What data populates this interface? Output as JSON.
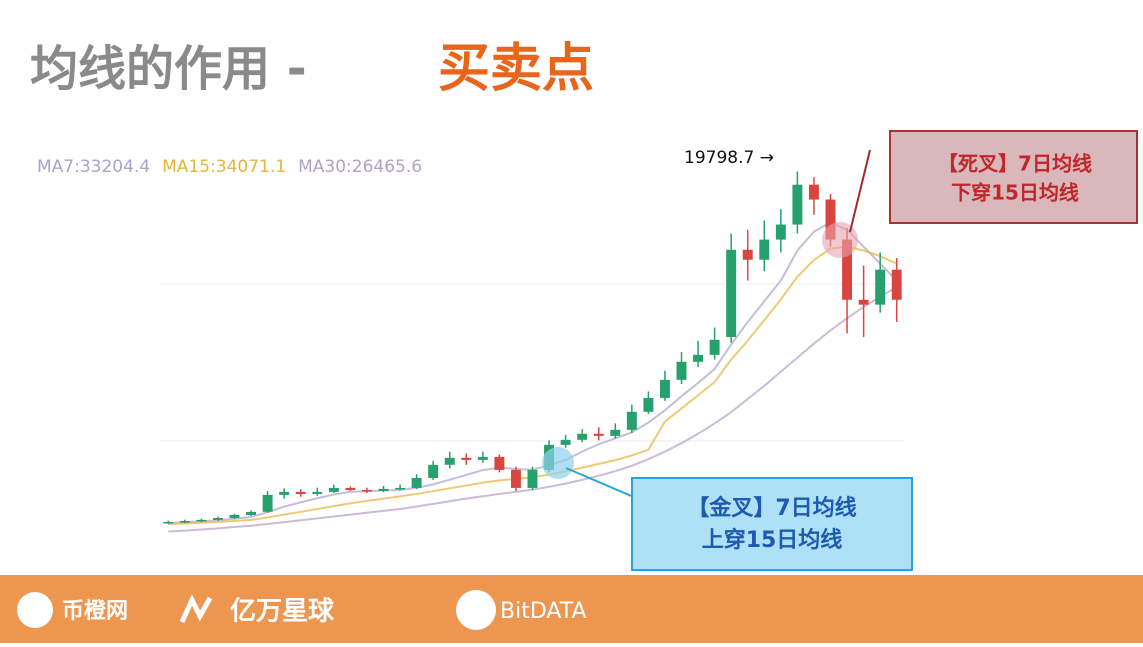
{
  "title": {
    "part1": "均线的作用 -",
    "part2": "买卖点"
  },
  "chart_data": {
    "type": "candlestick",
    "ylim": [
      200,
      21000
    ],
    "up_color": "#26a06c",
    "down_color": "#d9453f",
    "open": [
      1100,
      1160,
      1210,
      1270,
      1370,
      1530,
      1700,
      2600,
      2760,
      2650,
      2760,
      2970,
      2860,
      2810,
      2920,
      2970,
      3500,
      4200,
      4570,
      4460,
      4620,
      3930,
      2970,
      3930,
      5260,
      5530,
      5850,
      5740,
      6060,
      7020,
      7760,
      8720,
      9680,
      10050,
      11000,
      15640,
      15110,
      16180,
      16980,
      19100,
      18310,
      16180,
      12980,
      12720,
      14580
    ],
    "high": [
      1230,
      1280,
      1330,
      1450,
      1600,
      1780,
      2800,
      2950,
      2900,
      2980,
      3150,
      3050,
      2980,
      3080,
      3150,
      3700,
      4400,
      4900,
      4800,
      4900,
      4750,
      4100,
      4100,
      5500,
      5800,
      6100,
      6200,
      6400,
      7400,
      8100,
      9200,
      10200,
      10800,
      11500,
      16500,
      16700,
      17200,
      17800,
      19798.7,
      19500,
      18600,
      16800,
      14800,
      15500,
      15200
    ],
    "low": [
      1050,
      1100,
      1150,
      1220,
      1320,
      1480,
      1650,
      2400,
      2500,
      2550,
      2700,
      2800,
      2700,
      2750,
      2850,
      2900,
      3400,
      4000,
      4200,
      4300,
      3800,
      2800,
      2850,
      3800,
      5100,
      5400,
      5500,
      5600,
      5900,
      6900,
      7600,
      8500,
      9400,
      9800,
      10700,
      14000,
      14500,
      15500,
      16500,
      17500,
      15800,
      11200,
      11000,
      12300,
      11800
    ],
    "close": [
      1160,
      1210,
      1270,
      1370,
      1530,
      1690,
      2600,
      2760,
      2650,
      2760,
      2970,
      2860,
      2810,
      2920,
      2970,
      3500,
      4200,
      4570,
      4460,
      4620,
      3930,
      2970,
      3930,
      5260,
      5530,
      5850,
      5740,
      6060,
      7020,
      7760,
      8720,
      9680,
      10050,
      10850,
      15640,
      15110,
      16180,
      16980,
      19100,
      18310,
      16180,
      12980,
      12720,
      14580,
      12980
    ],
    "series": [
      {
        "name": "MA7:33204.4",
        "color": "#a9a3cc",
        "values": [
          1100,
          1150,
          1200,
          1250,
          1330,
          1420,
          1680,
          1980,
          2200,
          2420,
          2620,
          2760,
          2800,
          2830,
          2860,
          2970,
          3160,
          3410,
          3660,
          3920,
          4050,
          3980,
          3940,
          4180,
          4460,
          4900,
          5300,
          5600,
          5930,
          6450,
          7100,
          7850,
          8550,
          9300,
          10600,
          11800,
          12900,
          14000,
          15600,
          16600,
          17100,
          16700,
          15800,
          14900,
          14000
        ]
      },
      {
        "name": "MA15:34071.1",
        "color": "#e5b53a",
        "values": [
          1050,
          1080,
          1120,
          1160,
          1210,
          1270,
          1400,
          1550,
          1700,
          1850,
          2000,
          2150,
          2280,
          2400,
          2520,
          2650,
          2800,
          2950,
          3100,
          3250,
          3370,
          3450,
          3540,
          3680,
          3850,
          4050,
          4250,
          4450,
          4700,
          5000,
          6500,
          7200,
          7900,
          8600,
          9800,
          10800,
          11900,
          13000,
          14200,
          15100,
          15700,
          15800,
          15600,
          15300,
          14900
        ]
      },
      {
        "name": "MA30:26465.6",
        "color": "#b49fc6",
        "values": [
          650,
          700,
          760,
          820,
          890,
          960,
          1050,
          1150,
          1250,
          1350,
          1450,
          1550,
          1650,
          1750,
          1850,
          1980,
          2120,
          2260,
          2400,
          2530,
          2650,
          2760,
          2880,
          3030,
          3200,
          3400,
          3620,
          3860,
          4150,
          4500,
          4900,
          5350,
          5850,
          6400,
          7000,
          7700,
          8400,
          9150,
          9900,
          10650,
          11350,
          12000,
          12600,
          13150,
          13650
        ]
      }
    ],
    "peak_label": "19798.7 →",
    "annotations": [
      {
        "lines": [
          "【死叉】7日均线",
          "下穿15日均线"
        ]
      },
      {
        "lines": [
          "【金叉】7日均线",
          "上穿15日均线"
        ]
      }
    ]
  },
  "footer": {
    "logos": [
      "币橙网",
      "亿万星球",
      "BitDATA"
    ]
  }
}
